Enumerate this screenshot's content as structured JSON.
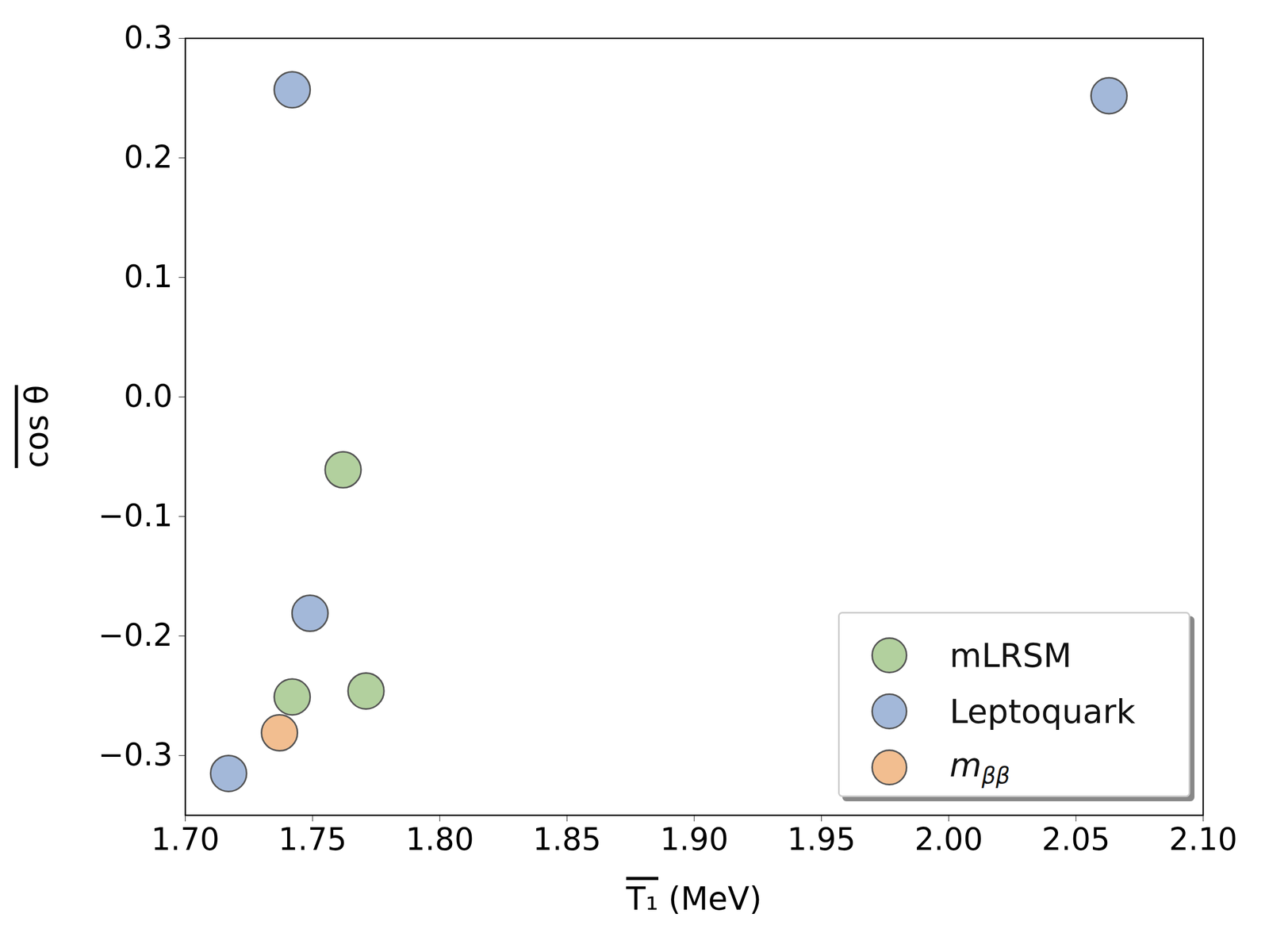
{
  "chart_data": {
    "type": "scatter",
    "x_label": "T₁ (MeV)",
    "y_label": "cos θ",
    "series": [
      {
        "name": "mLRSM",
        "color": "#b2d09e",
        "marker": "o",
        "x": [
          1.762,
          1.742,
          1.771
        ],
        "values": [
          -0.061,
          -0.251,
          -0.246
        ]
      },
      {
        "name": "Leptoquark",
        "color": "#a3b8d9",
        "marker": "o",
        "x": [
          1.742,
          2.063,
          1.749,
          1.717
        ],
        "values": [
          0.257,
          0.252,
          -0.181,
          -0.315
        ]
      },
      {
        "name": "mββ",
        "color": "#f2be90",
        "marker": "o",
        "x": [
          1.737
        ],
        "values": [
          -0.281
        ]
      }
    ],
    "xlim": [
      1.7,
      2.1
    ],
    "xticks": [
      {
        "value": 1.7,
        "label": "1.70"
      },
      {
        "value": 1.75,
        "label": "1.75"
      },
      {
        "value": 1.8,
        "label": "1.80"
      },
      {
        "value": 1.85,
        "label": "1.85"
      },
      {
        "value": 1.9,
        "label": "1.90"
      },
      {
        "value": 1.95,
        "label": "1.95"
      },
      {
        "value": 2.0,
        "label": "2.00"
      },
      {
        "value": 2.05,
        "label": "2.05"
      },
      {
        "value": 2.1,
        "label": "2.10"
      }
    ],
    "ylim": [
      -0.35,
      0.3
    ],
    "yticks": [
      {
        "value": -0.3,
        "label": "−0.3"
      },
      {
        "value": -0.2,
        "label": "−0.2"
      },
      {
        "value": -0.1,
        "label": "−0.1"
      },
      {
        "value": 0,
        "label": "0.0"
      },
      0.1,
      0.2,
      0.3
    ],
    "legend": "lower right",
    "grid": false
  }
}
